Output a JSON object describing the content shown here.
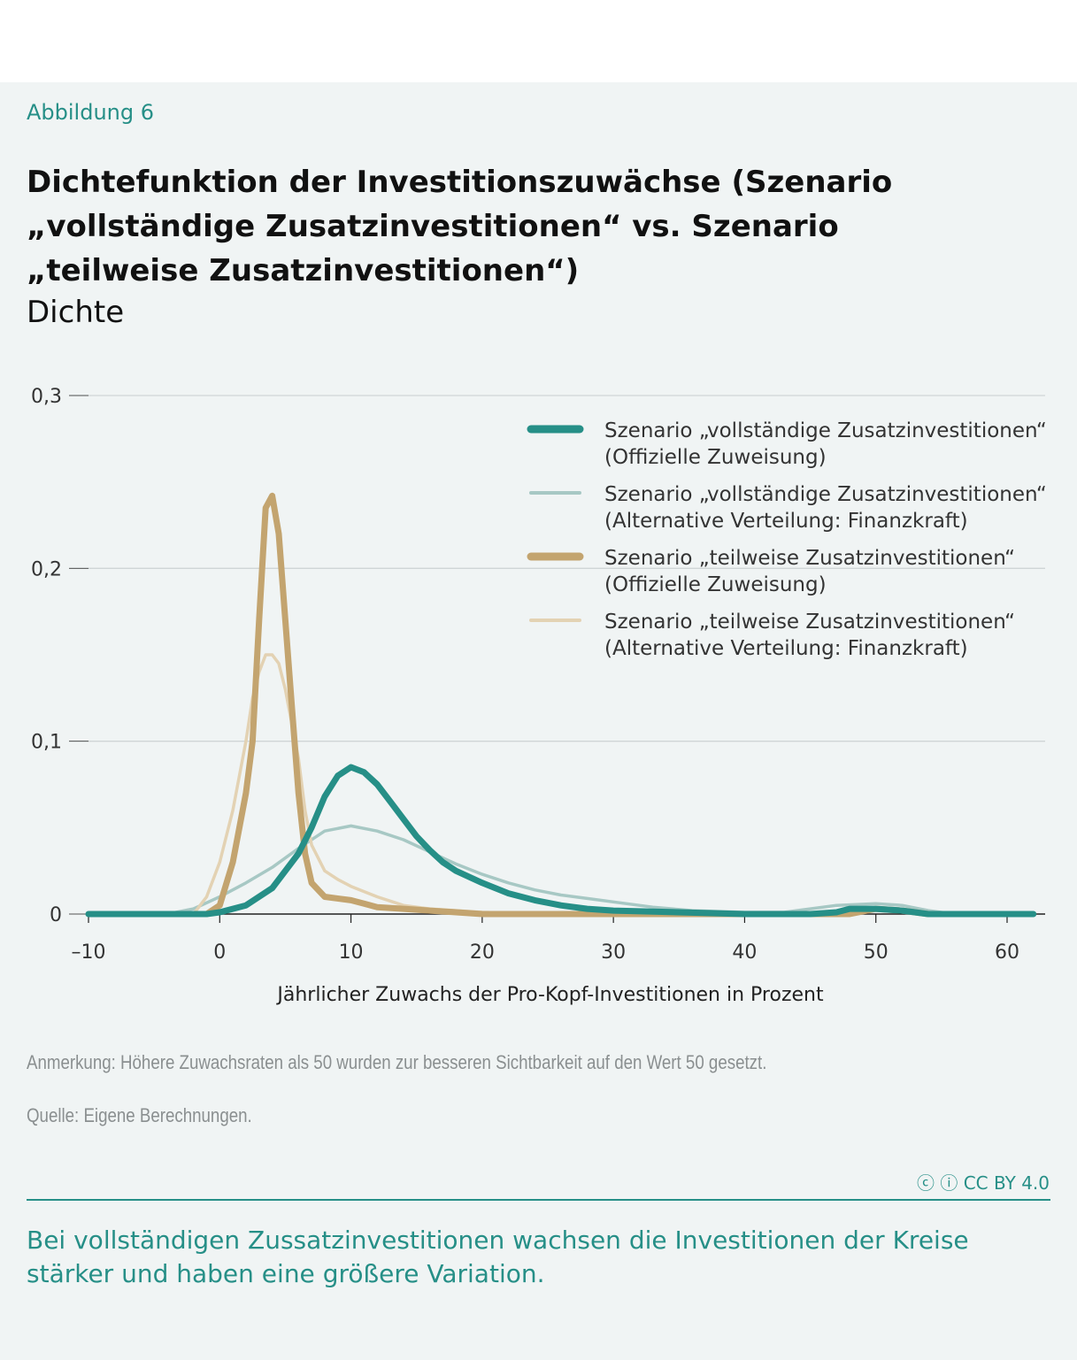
{
  "figure_label": "Abbildung 6",
  "title": "Dichtefunktion der Investitionszuwächse (Szenario „vollständige Zusatzinvestitionen“ vs. Szenario „teilweise Zusatzinvestitionen“)",
  "unit": "Dichte",
  "note": "Anmerkung: Höhere Zuwachsraten als 50 wurden zur besseren Sichtbarkeit auf den Wert 50 gesetzt.",
  "source": "Quelle: Eigene Berechnungen.",
  "license": "CC BY 4.0",
  "summary": "Bei vollständigen Zussatzinvestitionen wachsen die Investitionen der Kreise stärker und haben eine größere Variation.",
  "chart_data": {
    "type": "line",
    "xlabel": "Jährlicher Zuwachs der Pro-Kopf-Investitionen in Prozent",
    "ylabel": "Dichte",
    "xlim": [
      -10,
      62
    ],
    "ylim": [
      0,
      0.3
    ],
    "xticks": [
      -10,
      0,
      10,
      20,
      30,
      40,
      50,
      60
    ],
    "xtick_labels": [
      "–10",
      "0",
      "10",
      "20",
      "30",
      "40",
      "50",
      "60"
    ],
    "yticks": [
      0,
      0.1,
      0.2,
      0.3
    ],
    "ytick_labels": [
      "0",
      "0,1",
      "0,2",
      "0,3"
    ],
    "grid": "horizontal",
    "legend": "top-right",
    "series": [
      {
        "name": "Szenario „vollständige Zusatzinvestitionen“",
        "name2": "(Offizielle Zuweisung)",
        "color": "#268f87",
        "width": "thick",
        "x": [
          -10,
          -1,
          0,
          2,
          4,
          6,
          7,
          8,
          9,
          10,
          11,
          12,
          13,
          14,
          15,
          16,
          17,
          18,
          20,
          22,
          24,
          26,
          28,
          30,
          35,
          40,
          45,
          47,
          48,
          50,
          52,
          54,
          62
        ],
        "y": [
          0,
          0,
          0.001,
          0.005,
          0.015,
          0.035,
          0.05,
          0.068,
          0.08,
          0.085,
          0.082,
          0.075,
          0.065,
          0.055,
          0.045,
          0.037,
          0.03,
          0.025,
          0.018,
          0.012,
          0.008,
          0.005,
          0.003,
          0.002,
          0.001,
          0,
          0,
          0.001,
          0.003,
          0.003,
          0.002,
          0,
          0
        ]
      },
      {
        "name": "Szenario „vollständige Zusatzinvestitionen“",
        "name2": "(Alternative Verteilung: Finanzkraft)",
        "color": "#a7c8c4",
        "width": "thin",
        "x": [
          -10,
          -4,
          -2,
          0,
          2,
          4,
          6,
          8,
          10,
          12,
          14,
          16,
          18,
          20,
          22,
          24,
          26,
          28,
          30,
          33,
          36,
          40,
          43,
          45,
          47,
          50,
          52,
          54,
          56,
          62
        ],
        "y": [
          0,
          0,
          0.003,
          0.01,
          0.018,
          0.027,
          0.038,
          0.048,
          0.051,
          0.048,
          0.043,
          0.036,
          0.029,
          0.023,
          0.018,
          0.014,
          0.011,
          0.009,
          0.007,
          0.004,
          0.002,
          0.001,
          0.001,
          0.003,
          0.005,
          0.006,
          0.005,
          0.002,
          0,
          0
        ]
      },
      {
        "name": "Szenario „teilweise Zusatzinvestitionen“",
        "name2": "(Offizielle Zuweisung)",
        "color": "#c3a46f",
        "width": "thick",
        "x": [
          -1,
          0,
          1,
          2,
          2.5,
          3,
          3.5,
          4,
          4.5,
          5,
          5.5,
          6,
          6.5,
          7,
          8,
          10,
          11,
          12,
          14,
          16,
          18,
          20,
          48,
          50,
          52,
          54
        ],
        "y": [
          0,
          0.005,
          0.03,
          0.07,
          0.1,
          0.17,
          0.235,
          0.242,
          0.22,
          0.17,
          0.12,
          0.07,
          0.035,
          0.018,
          0.01,
          0.008,
          0.006,
          0.004,
          0.003,
          0.002,
          0.001,
          0,
          0,
          0.003,
          0.002,
          0
        ]
      },
      {
        "name": "Szenario „teilweise Zusatzinvestitionen“",
        "name2": "(Alternative Verteilung: Finanzkraft)",
        "color": "#e3d2b3",
        "width": "thin",
        "x": [
          -2,
          -1,
          0,
          1,
          2,
          2.5,
          3,
          3.5,
          4,
          4.5,
          5,
          5.5,
          6,
          6.5,
          7,
          8,
          9,
          10,
          12,
          14,
          16,
          20,
          25
        ],
        "y": [
          0,
          0.01,
          0.03,
          0.06,
          0.1,
          0.125,
          0.14,
          0.15,
          0.15,
          0.145,
          0.13,
          0.11,
          0.09,
          0.06,
          0.04,
          0.025,
          0.02,
          0.016,
          0.01,
          0.005,
          0.003,
          0.001,
          0
        ]
      }
    ]
  }
}
